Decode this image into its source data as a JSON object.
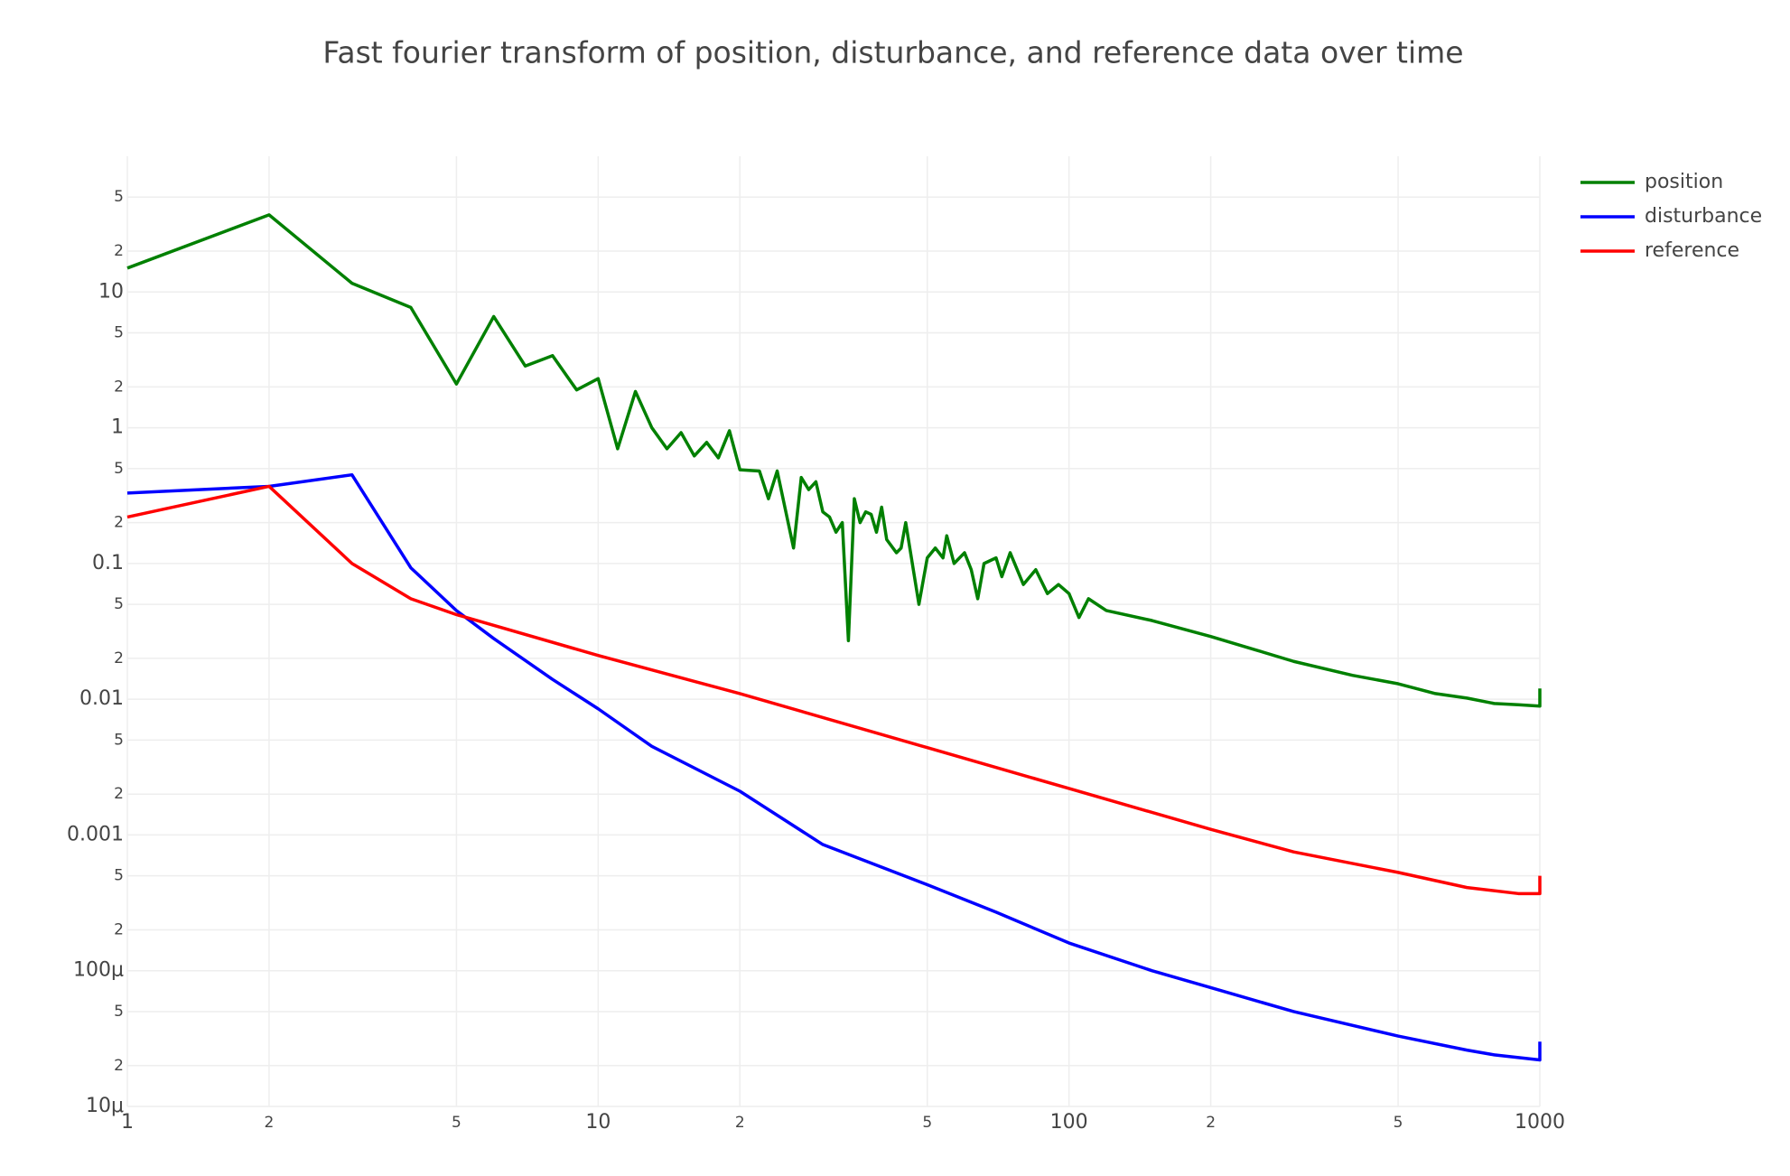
{
  "chart_data": {
    "type": "line",
    "title": "Fast fourier transform of position, disturbance, and reference data over time",
    "xlog": true,
    "ylog": true,
    "grid": true,
    "legend": "top-right",
    "xlim": [
      1,
      1000
    ],
    "xticks": [
      1,
      2,
      5,
      10,
      {
        "value": 20,
        "label": "2"
      },
      {
        "value": 50,
        "label": "5"
      },
      100,
      {
        "value": 200,
        "label": "2"
      },
      {
        "value": 500,
        "label": "5"
      },
      1000
    ],
    "ylim": [
      1e-05,
      100
    ],
    "yticks": [
      {
        "value": 1e-05,
        "label": "10μ"
      },
      {
        "value": 2e-05,
        "label": "2"
      },
      {
        "value": 5e-05,
        "label": "5"
      },
      {
        "value": 0.0001,
        "label": "100μ"
      },
      {
        "value": 0.0002,
        "label": "2"
      },
      {
        "value": 0.0005,
        "label": "5"
      },
      0.001,
      {
        "value": 0.002,
        "label": "2"
      },
      {
        "value": 0.005,
        "label": "5"
      },
      0.01,
      {
        "value": 0.02,
        "label": "2"
      },
      {
        "value": 0.05,
        "label": "5"
      },
      0.1,
      {
        "value": 0.2,
        "label": "2"
      },
      {
        "value": 0.5,
        "label": "5"
      },
      1,
      2,
      5,
      10,
      {
        "value": 20,
        "label": "2"
      },
      {
        "value": 50,
        "label": "5"
      }
    ],
    "series": [
      {
        "name": "position",
        "color": "#008000",
        "x": [
          1,
          2,
          3,
          4,
          5,
          6,
          7,
          8,
          9,
          10,
          11,
          12,
          13,
          14,
          15,
          16,
          17,
          18,
          19,
          20,
          22,
          23,
          24,
          26,
          27,
          28,
          29,
          30,
          31,
          32,
          33,
          34,
          35,
          36,
          37,
          38,
          39,
          40,
          41,
          43,
          44,
          45,
          48,
          50,
          52,
          54,
          55,
          57,
          60,
          62,
          64,
          66,
          70,
          72,
          75,
          80,
          85,
          90,
          95,
          100,
          105,
          110,
          120,
          150,
          200,
          250,
          300,
          400,
          500,
          600,
          700,
          800,
          900,
          1000,
          1000
        ],
        "values": [
          15,
          37,
          11.6,
          7.7,
          2.1,
          6.6,
          2.85,
          3.4,
          1.9,
          2.3,
          0.7,
          1.85,
          1.0,
          0.7,
          0.92,
          0.62,
          0.78,
          0.6,
          0.95,
          0.49,
          0.48,
          0.3,
          0.48,
          0.13,
          0.43,
          0.35,
          0.4,
          0.24,
          0.22,
          0.17,
          0.2,
          0.027,
          0.3,
          0.2,
          0.24,
          0.23,
          0.17,
          0.26,
          0.15,
          0.12,
          0.13,
          0.2,
          0.05,
          0.11,
          0.13,
          0.11,
          0.16,
          0.1,
          0.12,
          0.09,
          0.055,
          0.1,
          0.11,
          0.08,
          0.12,
          0.07,
          0.09,
          0.06,
          0.07,
          0.06,
          0.04,
          0.055,
          0.045,
          0.038,
          0.029,
          0.023,
          0.019,
          0.015,
          0.013,
          0.011,
          0.0102,
          0.0093,
          0.0091,
          0.0089,
          0.012
        ]
      },
      {
        "name": "disturbance",
        "color": "#0000ff",
        "x": [
          1,
          2,
          3,
          4,
          5,
          6,
          8,
          10,
          13,
          20,
          30,
          50,
          70,
          100,
          150,
          200,
          300,
          500,
          700,
          800,
          1000,
          1000
        ],
        "values": [
          0.33,
          0.37,
          0.45,
          0.093,
          0.045,
          0.028,
          0.014,
          0.0085,
          0.0045,
          0.0021,
          0.00085,
          0.00043,
          0.00027,
          0.00016,
          0.0001,
          7.5e-05,
          5e-05,
          3.3e-05,
          2.6e-05,
          2.4e-05,
          2.2e-05,
          3e-05
        ]
      },
      {
        "name": "reference",
        "color": "#ff0000",
        "x": [
          1,
          2,
          3,
          4,
          5,
          10,
          20,
          50,
          100,
          200,
          300,
          500,
          700,
          900,
          1000,
          1000
        ],
        "values": [
          0.22,
          0.37,
          0.1,
          0.055,
          0.042,
          0.021,
          0.011,
          0.0044,
          0.0022,
          0.0011,
          0.00075,
          0.00053,
          0.00041,
          0.00037,
          0.00037,
          0.0005
        ]
      }
    ]
  }
}
